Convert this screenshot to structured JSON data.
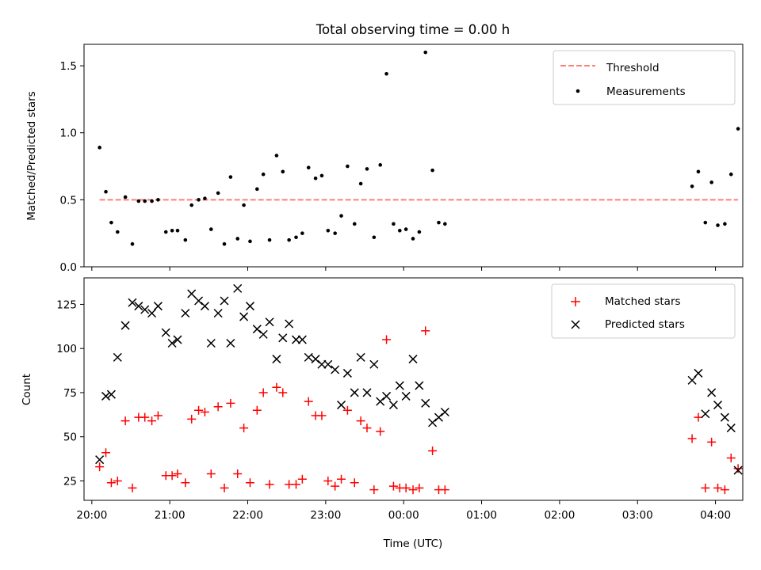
{
  "title": "Total observing time = 0.00 h",
  "colors": {
    "threshold": "#ff7f7f",
    "measurements": "#000000",
    "matched": "#ff0000",
    "predicted": "#000000",
    "axes": "#000000"
  },
  "chart_data": [
    {
      "type": "scatter",
      "title": "Total observing time = 0.00 h",
      "xlabel": "",
      "ylabel": "Matched/Predicted stars",
      "xlim": [
        19.9,
        28.35
      ],
      "ylim": [
        0,
        1.66
      ],
      "yticks": [
        0.0,
        0.5,
        1.0,
        1.5
      ],
      "ytick_labels": [
        "0.0",
        "0.5",
        "1.0",
        "1.5"
      ],
      "grid": false,
      "legend": {
        "placement": "upper right",
        "entries": [
          {
            "label": "Threshold",
            "kind": "dashed-line",
            "color": "#ff7f7f"
          },
          {
            "label": "Measurements",
            "kind": "dot",
            "color": "#000000"
          }
        ]
      },
      "threshold": {
        "name": "Threshold",
        "y": 0.5,
        "x": [
          20.1,
          28.29
        ]
      },
      "series": [
        {
          "name": "Measurements",
          "marker": "dot",
          "x": [
            20.1,
            20.18,
            20.25,
            20.33,
            20.43,
            20.52,
            20.6,
            20.68,
            20.77,
            20.85,
            20.95,
            21.03,
            21.1,
            21.2,
            21.28,
            21.37,
            21.45,
            21.53,
            21.62,
            21.7,
            21.78,
            21.87,
            21.95,
            22.03,
            22.12,
            22.2,
            22.28,
            22.37,
            22.45,
            22.53,
            22.62,
            22.7,
            22.78,
            22.87,
            22.95,
            23.03,
            23.12,
            23.2,
            23.28,
            23.37,
            23.45,
            23.53,
            23.62,
            23.7,
            23.78,
            23.87,
            23.95,
            24.03,
            24.12,
            24.2,
            24.28,
            24.37,
            24.45,
            24.53,
            27.7,
            27.78,
            27.87,
            27.95,
            28.03,
            28.12,
            28.2,
            28.29
          ],
          "y": [
            0.89,
            0.56,
            0.33,
            0.26,
            0.52,
            0.17,
            0.49,
            0.49,
            0.49,
            0.5,
            0.26,
            0.27,
            0.27,
            0.2,
            0.46,
            0.5,
            0.51,
            0.28,
            0.55,
            0.17,
            0.67,
            0.21,
            0.46,
            0.19,
            0.58,
            0.69,
            0.2,
            0.83,
            0.71,
            0.2,
            0.22,
            0.25,
            0.74,
            0.66,
            0.68,
            0.27,
            0.25,
            0.38,
            0.75,
            0.32,
            0.62,
            0.73,
            0.22,
            0.76,
            1.44,
            0.32,
            0.27,
            0.28,
            0.21,
            0.26,
            1.6,
            0.72,
            0.33,
            0.32,
            0.6,
            0.71,
            0.33,
            0.63,
            0.31,
            0.32,
            0.69,
            1.03
          ]
        }
      ]
    },
    {
      "type": "scatter",
      "title": "",
      "xlabel": "Time (UTC)",
      "ylabel": "Count",
      "xlim": [
        19.9,
        28.35
      ],
      "ylim": [
        14,
        140
      ],
      "xticks": [
        20,
        21,
        22,
        23,
        24,
        25,
        26,
        27,
        28
      ],
      "xtick_labels": [
        "20:00",
        "21:00",
        "22:00",
        "23:00",
        "00:00",
        "01:00",
        "02:00",
        "03:00",
        "04:00"
      ],
      "yticks": [
        25,
        50,
        75,
        100,
        125
      ],
      "ytick_labels": [
        "25",
        "50",
        "75",
        "100",
        "125"
      ],
      "grid": false,
      "legend": {
        "placement": "upper right",
        "entries": [
          {
            "label": "Matched stars",
            "kind": "plus",
            "color": "#ff0000"
          },
          {
            "label": "Predicted stars",
            "kind": "x",
            "color": "#000000"
          }
        ]
      },
      "series": [
        {
          "name": "Matched stars",
          "marker": "plus",
          "x": [
            20.1,
            20.18,
            20.25,
            20.33,
            20.43,
            20.52,
            20.6,
            20.68,
            20.77,
            20.85,
            20.95,
            21.03,
            21.1,
            21.2,
            21.28,
            21.37,
            21.45,
            21.53,
            21.62,
            21.7,
            21.78,
            21.87,
            21.95,
            22.03,
            22.12,
            22.2,
            22.28,
            22.37,
            22.45,
            22.53,
            22.62,
            22.7,
            22.78,
            22.87,
            22.95,
            23.03,
            23.12,
            23.2,
            23.28,
            23.37,
            23.45,
            23.53,
            23.62,
            23.7,
            23.78,
            23.87,
            23.95,
            24.03,
            24.12,
            24.2,
            24.28,
            24.37,
            24.45,
            24.53,
            27.7,
            27.78,
            27.87,
            27.95,
            28.03,
            28.12,
            28.2,
            28.29
          ],
          "y": [
            33,
            41,
            24,
            25,
            59,
            21,
            61,
            61,
            59,
            62,
            28,
            28,
            29,
            24,
            60,
            65,
            64,
            29,
            67,
            21,
            69,
            29,
            55,
            24,
            65,
            75,
            23,
            78,
            75,
            23,
            23,
            26,
            70,
            62,
            62,
            25,
            22,
            26,
            65,
            24,
            59,
            55,
            20,
            53,
            105,
            22,
            21,
            21,
            20,
            21,
            110,
            42,
            20,
            20,
            49,
            61,
            21,
            47,
            21,
            20,
            38,
            32
          ]
        },
        {
          "name": "Predicted stars",
          "marker": "x",
          "x": [
            20.1,
            20.18,
            20.25,
            20.33,
            20.43,
            20.52,
            20.6,
            20.68,
            20.77,
            20.85,
            20.95,
            21.03,
            21.1,
            21.2,
            21.28,
            21.37,
            21.45,
            21.53,
            21.62,
            21.7,
            21.78,
            21.87,
            21.95,
            22.03,
            22.12,
            22.2,
            22.28,
            22.37,
            22.45,
            22.53,
            22.62,
            22.7,
            22.78,
            22.87,
            22.95,
            23.03,
            23.12,
            23.2,
            23.28,
            23.37,
            23.45,
            23.53,
            23.62,
            23.7,
            23.78,
            23.87,
            23.95,
            24.03,
            24.12,
            24.2,
            24.28,
            24.37,
            24.45,
            24.53,
            27.7,
            27.78,
            27.87,
            27.95,
            28.03,
            28.12,
            28.2,
            28.29
          ],
          "y": [
            37,
            73,
            74,
            95,
            113,
            126,
            124,
            122,
            120,
            124,
            109,
            103,
            105,
            120,
            131,
            127,
            124,
            103,
            120,
            127,
            103,
            134,
            118,
            124,
            111,
            108,
            115,
            94,
            106,
            114,
            105,
            105,
            95,
            94,
            91,
            91,
            88,
            68,
            86,
            75,
            95,
            75,
            91,
            70,
            73,
            68,
            79,
            73,
            94,
            79,
            69,
            58,
            61,
            64,
            82,
            86,
            63,
            75,
            68,
            61,
            55,
            31
          ]
        }
      ]
    }
  ]
}
